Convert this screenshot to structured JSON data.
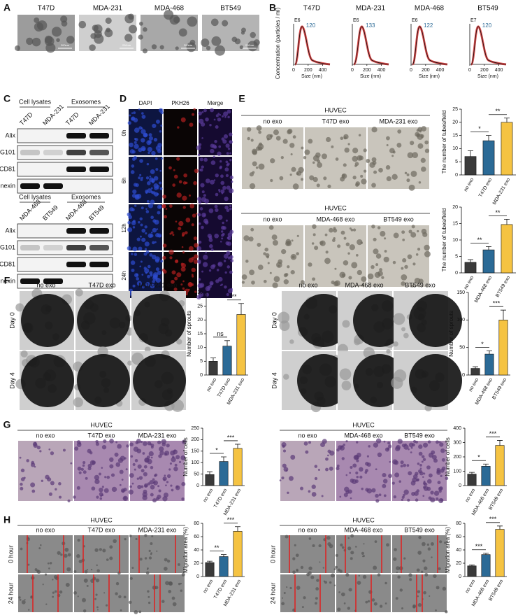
{
  "bar_colors": [
    "#3a3a3a",
    "#2b6a96",
    "#f5c342"
  ],
  "A": {
    "label": "A",
    "images": [
      "T47D",
      "MDA-231",
      "MDA-468",
      "BT549"
    ],
    "scale": "200nm"
  },
  "B": {
    "label": "B",
    "ylabel": "Concentration (particles / ml)",
    "xlabel": "Size (nm)",
    "xlim": [
      0,
      500
    ],
    "xticks": [
      0,
      200,
      400
    ],
    "plots": [
      {
        "title": "T47D",
        "exp": "E6",
        "peak": 120
      },
      {
        "title": "MDA-231",
        "exp": "E6",
        "peak": 133
      },
      {
        "title": "MDA-468",
        "exp": "E6",
        "peak": 122
      },
      {
        "title": "BT549",
        "exp": "E7",
        "peak": 120
      }
    ]
  },
  "C": {
    "label": "C",
    "groups": [
      {
        "headers": [
          "Cell lysates",
          "Exosomes"
        ],
        "lanes": [
          "T47D",
          "MDA-231",
          "T47D",
          "MDA-231"
        ],
        "proteins": [
          "Alix",
          "TSG101",
          "CD81",
          "Calnexin"
        ]
      },
      {
        "headers": [
          "Cell lysates",
          "Exosomes"
        ],
        "lanes": [
          "MDA-468",
          "BT549",
          "MDA-468",
          "BT549"
        ],
        "proteins": [
          "Alix",
          "TSG101",
          "CD81",
          "Calnexin"
        ]
      }
    ]
  },
  "D": {
    "label": "D",
    "columns": [
      "DAPI",
      "PKH26",
      "Merge"
    ],
    "rows": [
      "0h",
      "6h",
      "12h",
      "24h"
    ]
  },
  "E": {
    "label": "E",
    "sub": [
      {
        "cell": "HUVEC",
        "conditions": [
          "no exo",
          "T47D exo",
          "MDA-231 exo"
        ],
        "chart": {
          "type": "bar",
          "ylabel": "The number of tubes/field",
          "ylim": [
            0,
            25
          ],
          "yticks": [
            0,
            5,
            10,
            15,
            20,
            25
          ],
          "values": [
            7,
            13,
            20
          ],
          "errors": [
            2.2,
            2,
            1.6
          ],
          "significance": [
            "*",
            "**"
          ]
        }
      },
      {
        "cell": "HUVEC",
        "conditions": [
          "no exo",
          "MDA-468 exo",
          "BT549 exo"
        ],
        "chart": {
          "type": "bar",
          "ylabel": "The number of tubes/field",
          "ylim": [
            0,
            20
          ],
          "yticks": [
            0,
            5,
            10,
            15,
            20
          ],
          "values": [
            3.2,
            7,
            14.7
          ],
          "errors": [
            0.8,
            1,
            1.6
          ],
          "significance": [
            "**",
            "**"
          ]
        }
      }
    ]
  },
  "F": {
    "label": "F",
    "sub": [
      {
        "rows": [
          "Day 0",
          "Day 4"
        ],
        "conditions": [
          "no exo",
          "T47D exo",
          "MDA-231 exo"
        ],
        "chart": {
          "type": "bar",
          "ylabel": "Number of sprouts",
          "ylim": [
            0,
            30
          ],
          "yticks": [
            0,
            5,
            10,
            15,
            20,
            25,
            30
          ],
          "values": [
            5,
            10.5,
            22
          ],
          "errors": [
            1.2,
            2,
            4
          ],
          "significance": [
            "ns",
            "**"
          ]
        }
      },
      {
        "rows": [
          "Day 0",
          "Day 4"
        ],
        "conditions": [
          "no exo",
          "MDA-468 exo",
          "BT549 exo"
        ],
        "chart": {
          "type": "bar",
          "ylabel": "Number of sprouts",
          "ylim": [
            0,
            150
          ],
          "yticks": [
            0,
            50,
            100,
            150
          ],
          "values": [
            12,
            38,
            100
          ],
          "errors": [
            3,
            6,
            18
          ],
          "significance": [
            "*",
            "***"
          ]
        }
      }
    ]
  },
  "G": {
    "label": "G",
    "sub": [
      {
        "cell": "HUVEC",
        "conditions": [
          "no exo",
          "T47D exo",
          "MDA-231 exo"
        ],
        "chart": {
          "type": "bar",
          "ylabel": "Number of cells",
          "ylim": [
            0,
            250
          ],
          "yticks": [
            0,
            50,
            100,
            150,
            200,
            250
          ],
          "values": [
            48,
            105,
            162
          ],
          "errors": [
            12,
            20,
            18
          ],
          "significance": [
            "*",
            "***"
          ]
        }
      },
      {
        "cell": "HUVEC",
        "conditions": [
          "no exo",
          "MDA-468 exo",
          "BT549 exo"
        ],
        "chart": {
          "type": "bar",
          "ylabel": "Number of cells",
          "ylim": [
            0,
            400
          ],
          "yticks": [
            0,
            100,
            200,
            300,
            400
          ],
          "values": [
            80,
            135,
            280
          ],
          "errors": [
            12,
            15,
            35
          ],
          "significance": [
            "*",
            "***"
          ]
        }
      }
    ]
  },
  "H": {
    "label": "H",
    "sub": [
      {
        "cell": "HUVEC",
        "rows": [
          "0 hour",
          "24 hour"
        ],
        "conditions": [
          "no exo",
          "T47D exo",
          "MDA-231 exo"
        ],
        "chart": {
          "type": "bar",
          "ylabel": "Migration area (%)",
          "ylim": [
            0,
            80
          ],
          "yticks": [
            0,
            20,
            40,
            60,
            80
          ],
          "values": [
            21,
            30,
            68
          ],
          "errors": [
            2,
            3,
            7
          ],
          "significance": [
            "**",
            "***"
          ]
        }
      },
      {
        "cell": "HUVEC",
        "rows": [
          "0 hour",
          "24 hour"
        ],
        "conditions": [
          "no exo",
          "MDA-468 exo",
          "BT549 exo"
        ],
        "chart": {
          "type": "bar",
          "ylabel": "Migration area (%)",
          "ylim": [
            0,
            80
          ],
          "yticks": [
            0,
            20,
            40,
            60,
            80
          ],
          "values": [
            16,
            33,
            71
          ],
          "errors": [
            1.5,
            2,
            5
          ],
          "significance": [
            "***",
            "***"
          ]
        }
      }
    ]
  }
}
